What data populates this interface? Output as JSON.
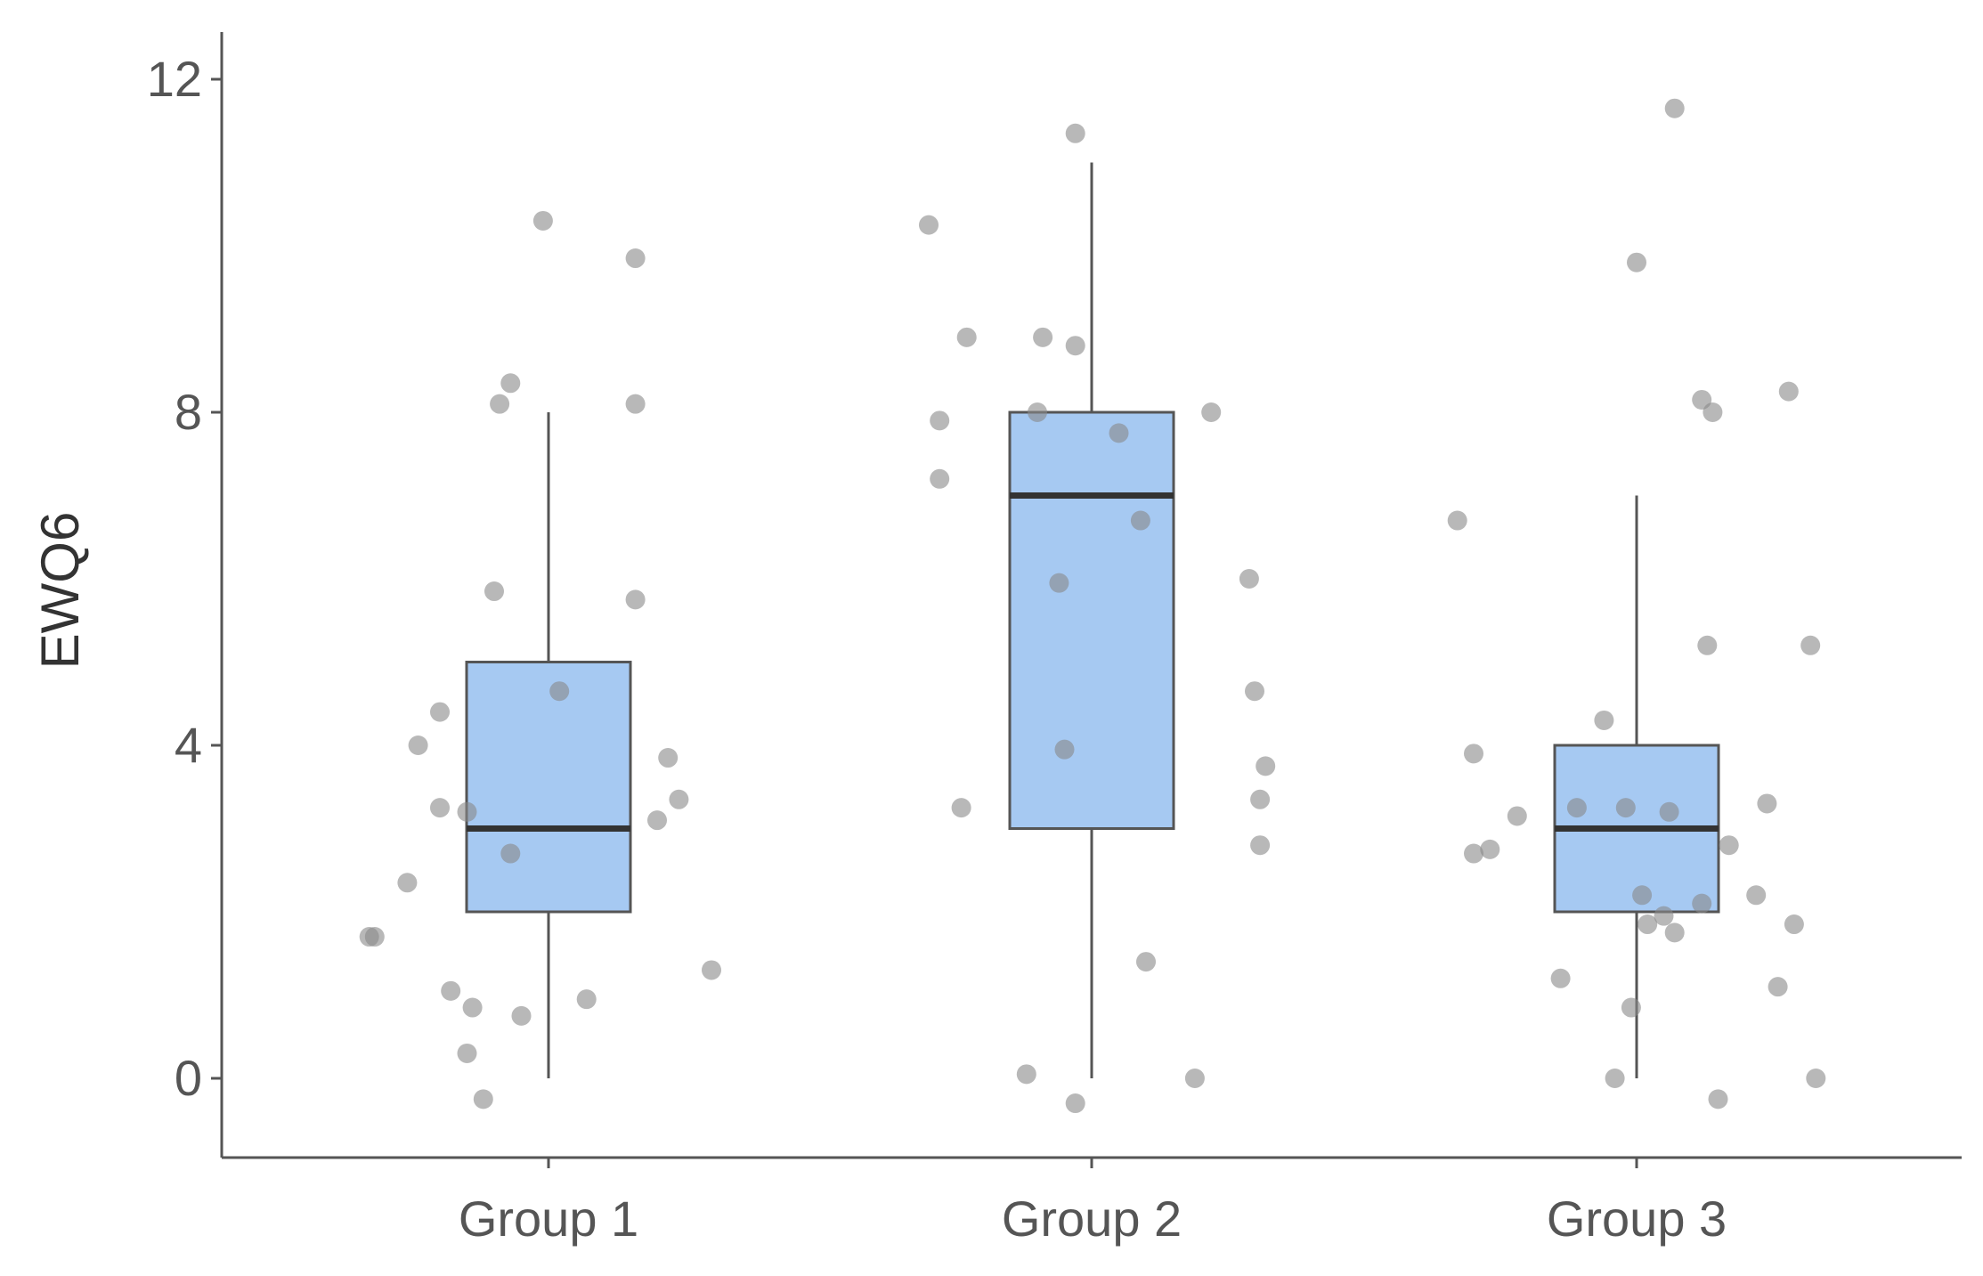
{
  "chart_data": {
    "type": "boxplot",
    "title": "",
    "xlabel": "",
    "ylabel": "EWQ6",
    "ylim": [
      -0.9,
      12.6
    ],
    "yticks": [
      0,
      4,
      8,
      12
    ],
    "grid": false,
    "legend": "none",
    "colors": {
      "box_fill": "#a6c9f2",
      "box_stroke": "#555555",
      "median": "#333333",
      "point": "#888888",
      "axis": "#555555"
    },
    "categories": [
      "Group 1",
      "Group 2",
      "Group 3"
    ],
    "boxes": [
      {
        "name": "Group 1",
        "whisker_low": 0,
        "q1": 2,
        "median": 3,
        "q3": 5,
        "whisker_high": 8
      },
      {
        "name": "Group 2",
        "whisker_low": 0,
        "q1": 3,
        "median": 7,
        "q3": 8,
        "whisker_high": 11
      },
      {
        "name": "Group 3",
        "whisker_low": 0,
        "q1": 2,
        "median": 3,
        "q3": 4,
        "whisker_high": 7
      }
    ],
    "points": [
      {
        "group": "Group 1",
        "jitter": -0.01,
        "y": 10.3
      },
      {
        "group": "Group 1",
        "jitter": 0.16,
        "y": 9.85
      },
      {
        "group": "Group 1",
        "jitter": -0.07,
        "y": 8.35
      },
      {
        "group": "Group 1",
        "jitter": -0.09,
        "y": 8.1
      },
      {
        "group": "Group 1",
        "jitter": 0.16,
        "y": 8.1
      },
      {
        "group": "Group 1",
        "jitter": -0.1,
        "y": 5.85
      },
      {
        "group": "Group 1",
        "jitter": 0.16,
        "y": 5.75
      },
      {
        "group": "Group 1",
        "jitter": 0.02,
        "y": 4.65
      },
      {
        "group": "Group 1",
        "jitter": -0.2,
        "y": 4.4
      },
      {
        "group": "Group 1",
        "jitter": -0.24,
        "y": 4.0
      },
      {
        "group": "Group 1",
        "jitter": 0.22,
        "y": 3.85
      },
      {
        "group": "Group 1",
        "jitter": 0.24,
        "y": 3.35
      },
      {
        "group": "Group 1",
        "jitter": -0.2,
        "y": 3.25
      },
      {
        "group": "Group 1",
        "jitter": -0.15,
        "y": 3.2
      },
      {
        "group": "Group 1",
        "jitter": 0.2,
        "y": 3.1
      },
      {
        "group": "Group 1",
        "jitter": -0.07,
        "y": 2.7
      },
      {
        "group": "Group 1",
        "jitter": -0.26,
        "y": 2.35
      },
      {
        "group": "Group 1",
        "jitter": -0.32,
        "y": 1.7
      },
      {
        "group": "Group 1",
        "jitter": -0.33,
        "y": 1.7
      },
      {
        "group": "Group 1",
        "jitter": 0.3,
        "y": 1.3
      },
      {
        "group": "Group 1",
        "jitter": -0.18,
        "y": 1.05
      },
      {
        "group": "Group 1",
        "jitter": 0.07,
        "y": 0.95
      },
      {
        "group": "Group 1",
        "jitter": -0.14,
        "y": 0.85
      },
      {
        "group": "Group 1",
        "jitter": -0.05,
        "y": 0.75
      },
      {
        "group": "Group 1",
        "jitter": -0.15,
        "y": 0.3
      },
      {
        "group": "Group 1",
        "jitter": -0.12,
        "y": -0.25
      },
      {
        "group": "Group 2",
        "jitter": -0.03,
        "y": 11.35
      },
      {
        "group": "Group 2",
        "jitter": -0.3,
        "y": 10.25
      },
      {
        "group": "Group 2",
        "jitter": -0.23,
        "y": 8.9
      },
      {
        "group": "Group 2",
        "jitter": -0.09,
        "y": 8.9
      },
      {
        "group": "Group 2",
        "jitter": -0.03,
        "y": 8.8
      },
      {
        "group": "Group 2",
        "jitter": -0.1,
        "y": 8.0
      },
      {
        "group": "Group 2",
        "jitter": 0.22,
        "y": 8.0
      },
      {
        "group": "Group 2",
        "jitter": 0.05,
        "y": 7.75
      },
      {
        "group": "Group 2",
        "jitter": -0.28,
        "y": 7.9
      },
      {
        "group": "Group 2",
        "jitter": -0.28,
        "y": 7.2
      },
      {
        "group": "Group 2",
        "jitter": 0.09,
        "y": 6.7
      },
      {
        "group": "Group 2",
        "jitter": -0.06,
        "y": 5.95
      },
      {
        "group": "Group 2",
        "jitter": 0.29,
        "y": 6.0
      },
      {
        "group": "Group 2",
        "jitter": 0.3,
        "y": 4.65
      },
      {
        "group": "Group 2",
        "jitter": -0.05,
        "y": 3.95
      },
      {
        "group": "Group 2",
        "jitter": 0.32,
        "y": 3.75
      },
      {
        "group": "Group 2",
        "jitter": 0.31,
        "y": 3.35
      },
      {
        "group": "Group 2",
        "jitter": -0.24,
        "y": 3.25
      },
      {
        "group": "Group 2",
        "jitter": 0.31,
        "y": 2.8
      },
      {
        "group": "Group 2",
        "jitter": 0.1,
        "y": 1.4
      },
      {
        "group": "Group 2",
        "jitter": -0.12,
        "y": 0.05
      },
      {
        "group": "Group 2",
        "jitter": 0.19,
        "y": 0.0
      },
      {
        "group": "Group 2",
        "jitter": -0.03,
        "y": -0.3
      },
      {
        "group": "Group 3",
        "jitter": 0.07,
        "y": 11.65
      },
      {
        "group": "Group 3",
        "jitter": 0.0,
        "y": 9.8
      },
      {
        "group": "Group 3",
        "jitter": 0.28,
        "y": 8.25
      },
      {
        "group": "Group 3",
        "jitter": 0.12,
        "y": 8.15
      },
      {
        "group": "Group 3",
        "jitter": 0.14,
        "y": 8.0
      },
      {
        "group": "Group 3",
        "jitter": -0.33,
        "y": 6.7
      },
      {
        "group": "Group 3",
        "jitter": 0.32,
        "y": 5.2
      },
      {
        "group": "Group 3",
        "jitter": 0.13,
        "y": 5.2
      },
      {
        "group": "Group 3",
        "jitter": -0.06,
        "y": 4.3
      },
      {
        "group": "Group 3",
        "jitter": -0.3,
        "y": 3.9
      },
      {
        "group": "Group 3",
        "jitter": -0.22,
        "y": 3.15
      },
      {
        "group": "Group 3",
        "jitter": -0.11,
        "y": 3.25
      },
      {
        "group": "Group 3",
        "jitter": -0.02,
        "y": 3.25
      },
      {
        "group": "Group 3",
        "jitter": 0.06,
        "y": 3.2
      },
      {
        "group": "Group 3",
        "jitter": 0.24,
        "y": 3.3
      },
      {
        "group": "Group 3",
        "jitter": 0.17,
        "y": 2.8
      },
      {
        "group": "Group 3",
        "jitter": -0.3,
        "y": 2.7
      },
      {
        "group": "Group 3",
        "jitter": -0.27,
        "y": 2.75
      },
      {
        "group": "Group 3",
        "jitter": 0.01,
        "y": 2.2
      },
      {
        "group": "Group 3",
        "jitter": 0.12,
        "y": 2.1
      },
      {
        "group": "Group 3",
        "jitter": 0.22,
        "y": 2.2
      },
      {
        "group": "Group 3",
        "jitter": 0.29,
        "y": 1.85
      },
      {
        "group": "Group 3",
        "jitter": 0.05,
        "y": 1.95
      },
      {
        "group": "Group 3",
        "jitter": 0.07,
        "y": 1.75
      },
      {
        "group": "Group 3",
        "jitter": 0.02,
        "y": 1.85
      },
      {
        "group": "Group 3",
        "jitter": -0.14,
        "y": 1.2
      },
      {
        "group": "Group 3",
        "jitter": 0.26,
        "y": 1.1
      },
      {
        "group": "Group 3",
        "jitter": -0.01,
        "y": 0.85
      },
      {
        "group": "Group 3",
        "jitter": -0.04,
        "y": 0.0
      },
      {
        "group": "Group 3",
        "jitter": 0.33,
        "y": 0.0
      },
      {
        "group": "Group 3",
        "jitter": 0.15,
        "y": -0.25
      }
    ]
  }
}
